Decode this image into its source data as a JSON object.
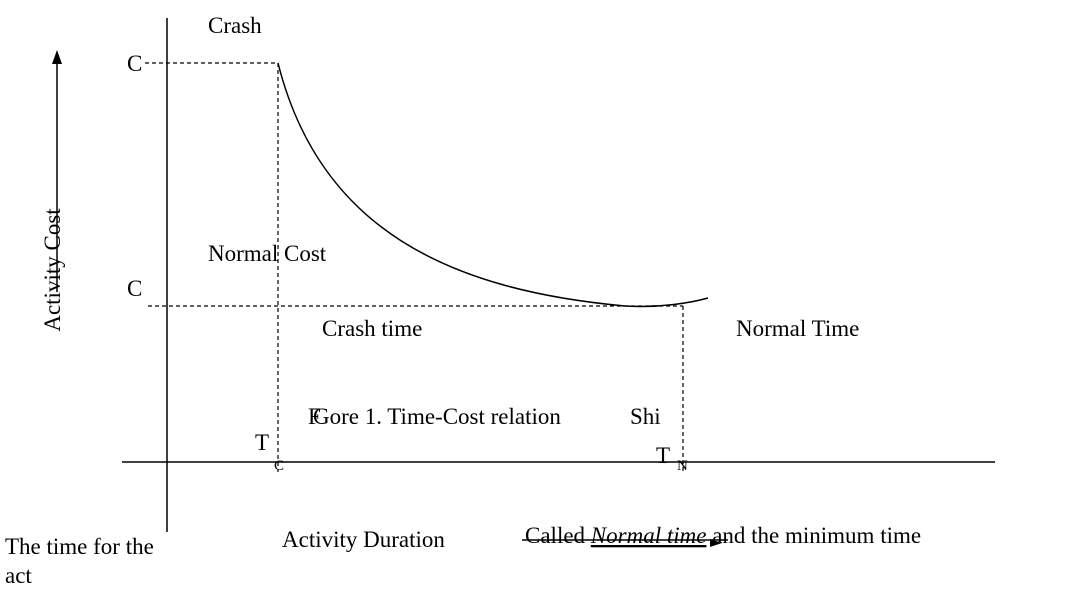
{
  "diagram": {
    "labels": {
      "crash": "Crash",
      "crash_cost_symbol": "C",
      "normal_cost": "Normal Cost",
      "normal_cost_symbol": "C",
      "y_axis": "Activity Cost",
      "crash_time": "Crash time",
      "normal_time": "Normal Time",
      "crash_time_symbol": "T",
      "crash_time_subscript": "C",
      "normal_time_symbol": "T",
      "normal_time_subscript": "N",
      "x_axis": "Activity Duration"
    },
    "caption": {
      "overlay_start": "F",
      "text": "Gore 1. Time-Cost relation",
      "overlay_end": "Shi"
    },
    "body_text": {
      "line_right": [
        "Called ",
        "Normal time",
        " and the minimum time"
      ],
      "line_left_1": "The time for the",
      "line_left_2": "act"
    }
  }
}
